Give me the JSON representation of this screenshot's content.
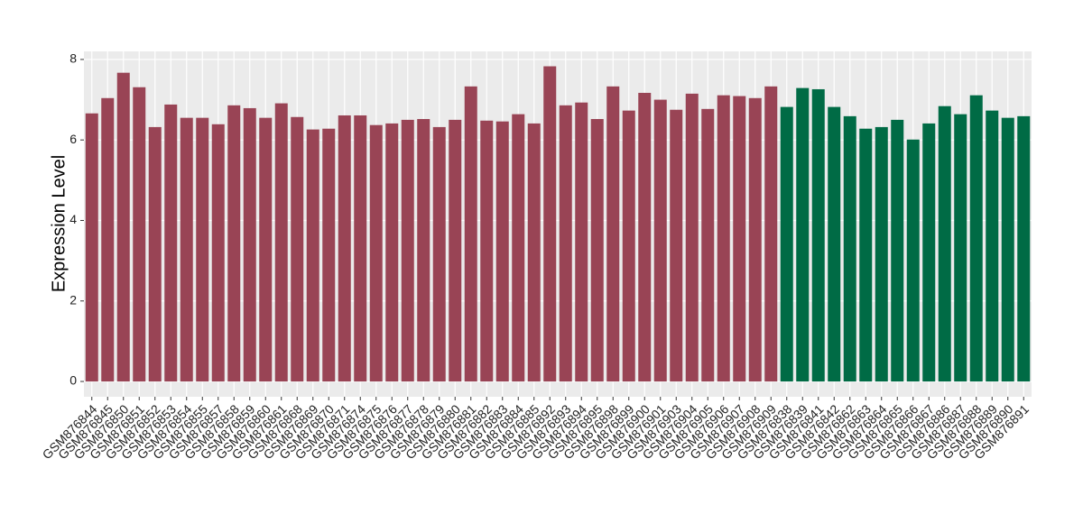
{
  "chart_data": {
    "type": "bar",
    "ylabel": "Expression Level",
    "categories": [
      "GSM876844",
      "GSM876845",
      "GSM876850",
      "GSM876851",
      "GSM876852",
      "GSM876853",
      "GSM876854",
      "GSM876855",
      "GSM876857",
      "GSM876858",
      "GSM876859",
      "GSM876860",
      "GSM876861",
      "GSM876868",
      "GSM876869",
      "GSM876870",
      "GSM876871",
      "GSM876874",
      "GSM876875",
      "GSM876876",
      "GSM876877",
      "GSM876878",
      "GSM876879",
      "GSM876880",
      "GSM876881",
      "GSM876882",
      "GSM876883",
      "GSM876884",
      "GSM876885",
      "GSM876892",
      "GSM876893",
      "GSM876894",
      "GSM876895",
      "GSM876898",
      "GSM876899",
      "GSM876900",
      "GSM876901",
      "GSM876903",
      "GSM876904",
      "GSM876905",
      "GSM876906",
      "GSM876907",
      "GSM876908",
      "GSM876909",
      "GSM876838",
      "GSM876839",
      "GSM876841",
      "GSM876842",
      "GSM876862",
      "GSM876863",
      "GSM876864",
      "GSM876865",
      "GSM876866",
      "GSM876867",
      "GSM876886",
      "GSM876887",
      "GSM876888",
      "GSM876889",
      "GSM876890",
      "GSM876891"
    ],
    "values": [
      6.66,
      7.04,
      7.67,
      7.31,
      6.32,
      6.88,
      6.55,
      6.55,
      6.39,
      6.86,
      6.79,
      6.55,
      6.91,
      6.57,
      6.26,
      6.28,
      6.61,
      6.61,
      6.37,
      6.41,
      6.5,
      6.52,
      6.32,
      6.5,
      7.33,
      6.48,
      6.46,
      6.64,
      6.41,
      7.83,
      6.86,
      6.93,
      6.52,
      7.33,
      6.73,
      7.17,
      7.0,
      6.75,
      7.15,
      6.77,
      7.11,
      7.09,
      7.04,
      7.33,
      6.82,
      7.29,
      7.26,
      6.82,
      6.59,
      6.28,
      6.32,
      6.5,
      6.01,
      6.41,
      6.84,
      6.64,
      7.11,
      6.73,
      6.55,
      6.59
    ],
    "colors": [
      "#994455",
      "#994455",
      "#994455",
      "#994455",
      "#994455",
      "#994455",
      "#994455",
      "#994455",
      "#994455",
      "#994455",
      "#994455",
      "#994455",
      "#994455",
      "#994455",
      "#994455",
      "#994455",
      "#994455",
      "#994455",
      "#994455",
      "#994455",
      "#994455",
      "#994455",
      "#994455",
      "#994455",
      "#994455",
      "#994455",
      "#994455",
      "#994455",
      "#994455",
      "#994455",
      "#994455",
      "#994455",
      "#994455",
      "#994455",
      "#994455",
      "#994455",
      "#994455",
      "#994455",
      "#994455",
      "#994455",
      "#994455",
      "#994455",
      "#994455",
      "#994455",
      "#006b45",
      "#006b45",
      "#006b45",
      "#006b45",
      "#006b45",
      "#006b45",
      "#006b45",
      "#006b45",
      "#006b45",
      "#006b45",
      "#006b45",
      "#006b45",
      "#006b45",
      "#006b45",
      "#006b45",
      "#006b45"
    ],
    "ylim": [
      -0.38,
      8.2
    ],
    "yticks": [
      0,
      2,
      4,
      6,
      8
    ],
    "grid": true
  }
}
